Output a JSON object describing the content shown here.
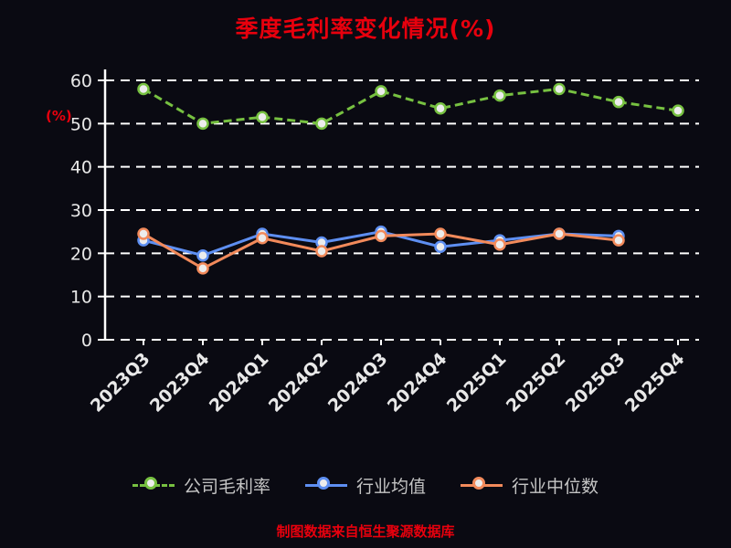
{
  "title": "季度毛利率变化情况(%)",
  "footer_note": "制图数据来自恒生聚源数据库",
  "chart_data": {
    "type": "line",
    "title": "季度毛利率变化情况(%)",
    "categories": [
      "2023Q3",
      "2023Q4",
      "2024Q1",
      "2024Q2",
      "2024Q3",
      "2024Q4",
      "2025Q1",
      "2025Q2",
      "2025Q3",
      "2025Q4"
    ],
    "series": [
      {
        "name": "公司毛利率",
        "color": "#77c141",
        "line_style": "dashed",
        "values": [
          58,
          50,
          51.5,
          50,
          57.5,
          53.5,
          56.5,
          58,
          55,
          53
        ]
      },
      {
        "name": "行业均值",
        "color": "#5e8ff2",
        "line_style": "solid",
        "values": [
          23,
          19.5,
          24.5,
          22.5,
          25,
          21.5,
          23,
          24.5,
          24,
          null
        ]
      },
      {
        "name": "行业中位数",
        "color": "#f28a5b",
        "line_style": "solid",
        "values": [
          24.5,
          16.5,
          23.5,
          20.5,
          24,
          24.5,
          22,
          24.5,
          23,
          null
        ]
      }
    ],
    "xlabel": "",
    "ylabel": "(%)",
    "ylim": [
      0,
      60
    ],
    "yticks": [
      0,
      10,
      20,
      30,
      40,
      50,
      60
    ],
    "grid": "horizontal-dashed-white",
    "legend_position": "bottom",
    "x_tick_rotation": -45
  },
  "colors": {
    "background": "#0a0a12",
    "title": "#e8000d",
    "axis": "#ffffff",
    "tick_label": "#e8e8e8",
    "legend_text": "#c4c4c4",
    "marker_fill": "#ececec"
  }
}
